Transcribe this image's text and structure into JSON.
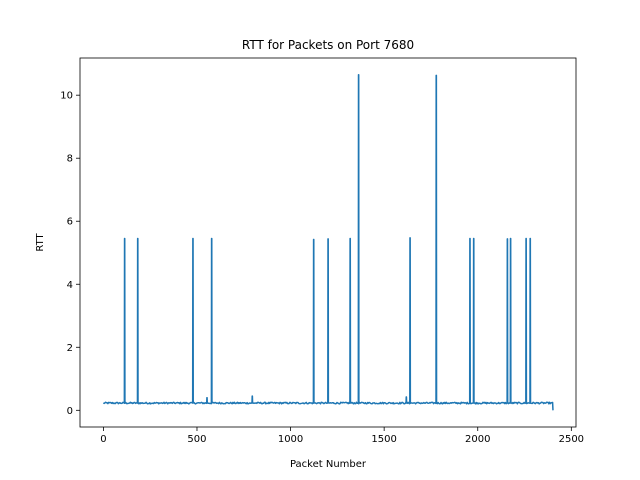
{
  "chart_data": {
    "type": "line",
    "title": "RTT for Packets on Port 7680",
    "xlabel": "Packet Number",
    "ylabel": "RTT",
    "xlim": [
      -125,
      2525
    ],
    "ylim": [
      -0.53,
      11.18
    ],
    "xticks": [
      0,
      500,
      1000,
      1500,
      2000,
      2500
    ],
    "yticks": [
      0,
      2,
      4,
      6,
      8,
      10
    ],
    "grid": false,
    "legend": "none",
    "series": [
      {
        "color": "#1f77b4",
        "baseline": 0.23,
        "x_range": [
          0,
          2400
        ],
        "end_value": 0.0,
        "spikes": [
          {
            "x": 113,
            "y": 5.45
          },
          {
            "x": 183,
            "y": 5.45
          },
          {
            "x": 478,
            "y": 5.45
          },
          {
            "x": 553,
            "y": 0.4
          },
          {
            "x": 578,
            "y": 5.45
          },
          {
            "x": 795,
            "y": 0.45
          },
          {
            "x": 1123,
            "y": 5.42
          },
          {
            "x": 1200,
            "y": 5.44
          },
          {
            "x": 1318,
            "y": 5.45
          },
          {
            "x": 1363,
            "y": 10.65
          },
          {
            "x": 1618,
            "y": 0.42
          },
          {
            "x": 1638,
            "y": 5.47
          },
          {
            "x": 1778,
            "y": 10.63
          },
          {
            "x": 1958,
            "y": 5.45
          },
          {
            "x": 1978,
            "y": 5.45
          },
          {
            "x": 2158,
            "y": 5.44
          },
          {
            "x": 2175,
            "y": 5.45
          },
          {
            "x": 2258,
            "y": 5.45
          },
          {
            "x": 2280,
            "y": 5.45
          }
        ]
      }
    ]
  }
}
